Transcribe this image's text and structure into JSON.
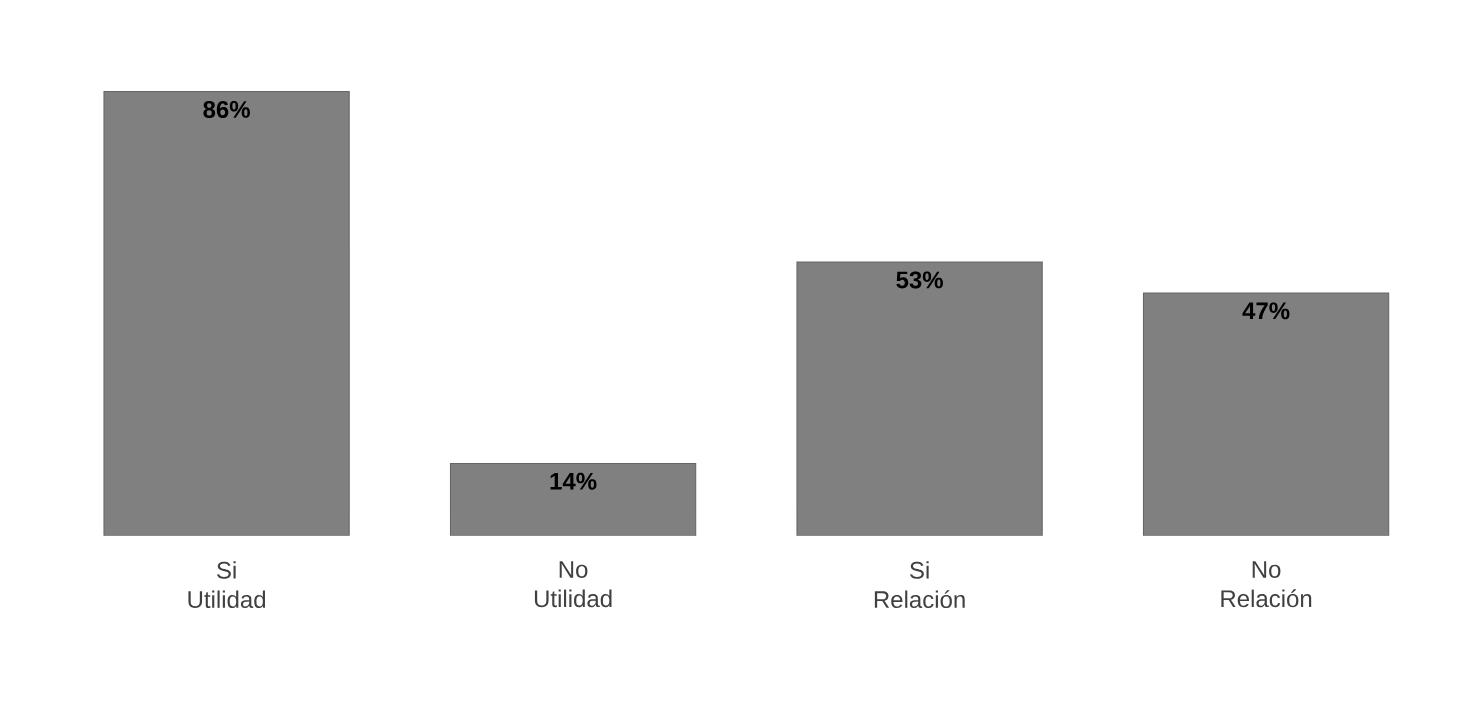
{
  "chart_data": {
    "type": "bar",
    "categories": [
      "Si Utilidad",
      "No Utilidad",
      "Si Relación",
      "No Relación"
    ],
    "values": [
      86,
      14,
      53,
      47
    ],
    "value_labels": [
      "86%",
      "14%",
      "53%",
      "47%"
    ],
    "color": "#808080"
  }
}
